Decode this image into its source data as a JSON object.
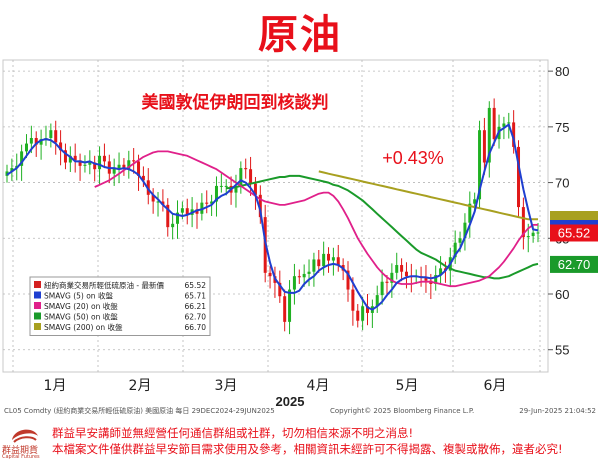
{
  "page": {
    "title": "原油",
    "disclaimer_1": "群益早安講師並無經營任何通信群組或社群，切勿相信來源不明之消息!",
    "disclaimer_2": "本檔案文件僅供群益早安節目需求使用及參考，相關資訊未經許可不得揭露、複製或散佈，違者必究!",
    "logo_text": "群益期貨",
    "logo_sub": "Capital Futures"
  },
  "chart_data": {
    "type": "line",
    "title": "原油",
    "annotations": [
      "美國敦促伊朗回到核談判",
      "+0.43%"
    ],
    "xlabel": "2025",
    "x_tick_labels": [
      "1月",
      "2月",
      "3月",
      "4月",
      "5月",
      "6月"
    ],
    "ylim": [
      53,
      81
    ],
    "y_ticks": [
      55,
      60,
      65,
      70,
      75,
      80
    ],
    "grid": true,
    "legend_position": "bottom-left",
    "legend": [
      {
        "name": "紐約商業交易所輕低硫原油 - 最新價",
        "value": "65.52",
        "color": "#d42020"
      },
      {
        "name": "SMAVG (5)  on 收盤",
        "value": "65.71",
        "color": "#1f3fd0"
      },
      {
        "name": "SMAVG (20)  on 收盤",
        "value": "66.21",
        "color": "#e0208a"
      },
      {
        "name": "SMAVG (50)  on 收盤",
        "value": "62.70",
        "color": "#1a9a2a"
      },
      {
        "name": "SMAVG (200)  on 收盤",
        "value": "66.70",
        "color": "#a8a020"
      }
    ],
    "price_labels": [
      {
        "value": 65.52,
        "text": "65.52",
        "color": "#e8101a"
      },
      {
        "value": 62.7,
        "text": "62.70",
        "color": "#1a9a2a"
      }
    ],
    "footer_left": "CL05 Comdty (紐約商業交易所輕低硫原油) 美國原油  每日 29DEC2024-29JUN2025",
    "footer_center": "Copyright© 2025 Bloomberg Finance L.P.",
    "footer_right": "29-Jun-2025 21:04:52",
    "close": [
      71.0,
      71.3,
      71.5,
      72.8,
      73.5,
      74.0,
      73.4,
      73.9,
      74.0,
      74.7,
      73.6,
      72.9,
      71.8,
      72.4,
      72.0,
      71.5,
      71.6,
      71.8,
      71.2,
      72.4,
      71.9,
      70.8,
      71.3,
      71.6,
      71.2,
      72.0,
      71.9,
      70.6,
      70.2,
      68.9,
      68.3,
      68.3,
      68.0,
      66.0,
      66.3,
      67.3,
      67.7,
      67.1,
      67.6,
      67.2,
      68.2,
      68.1,
      68.3,
      69.7,
      69.7,
      69.7,
      69.1,
      69.6,
      71.3,
      71.2,
      69.9,
      68.9,
      66.9,
      61.9,
      61.6,
      61.0,
      59.8,
      57.5,
      60.4,
      61.6,
      61.5,
      61.8,
      62.0,
      63.1,
      62.5,
      63.6,
      63.0,
      63.3,
      62.6,
      62.1,
      60.4,
      58.5,
      57.6,
      58.9,
      58.3,
      58.9,
      59.9,
      61.1,
      61.0,
      61.9,
      62.6,
      62.0,
      61.6,
      61.5,
      61.6,
      61.5,
      61.2,
      60.9,
      61.7,
      62.3,
      62.1,
      63.3,
      64.6,
      65.0,
      66.4,
      68.1,
      68.5,
      74.7,
      71.8,
      76.7,
      73.9,
      75.0,
      75.3,
      75.4,
      73.2,
      67.8,
      65.1,
      65.2,
      65.5,
      65.52
    ],
    "smavg5": [
      70.7,
      71.0,
      71.3,
      71.8,
      72.4,
      73.0,
      73.5,
      73.8,
      73.9,
      73.8,
      73.5,
      73.0,
      72.6,
      72.3,
      71.9,
      71.9,
      71.8,
      71.9,
      71.7,
      71.6,
      71.4,
      71.3,
      71.3,
      71.2,
      71.3,
      71.2,
      71.0,
      70.7,
      70.1,
      69.4,
      68.9,
      68.5,
      68.0,
      67.6,
      67.2,
      67.1,
      67.0,
      67.1,
      67.3,
      67.5,
      67.6,
      67.8,
      68.0,
      68.5,
      68.8,
      69.0,
      69.4,
      69.8,
      70.2,
      70.0,
      69.5,
      68.9,
      67.5,
      64.7,
      62.8,
      61.4,
      60.8,
      60.2,
      60.1,
      60.1,
      60.3,
      60.9,
      61.3,
      61.6,
      62.1,
      62.4,
      62.6,
      62.7,
      62.6,
      62.3,
      61.8,
      61.0,
      60.2,
      59.5,
      58.8,
      58.6,
      58.9,
      59.3,
      59.9,
      60.4,
      61.0,
      61.3,
      61.5,
      61.6,
      61.6,
      61.5,
      61.5,
      61.4,
      61.5,
      61.7,
      62.1,
      62.7,
      63.5,
      64.1,
      65.1,
      66.2,
      67.4,
      69.3,
      71.0,
      72.6,
      73.6,
      74.6,
      74.9,
      75.2,
      73.9,
      71.6,
      69.4,
      67.5,
      65.8,
      65.71
    ],
    "smavg20": [
      69.6,
      69.8,
      70.0,
      70.2,
      70.5,
      70.8,
      71.1,
      71.4,
      71.7,
      72.0,
      72.3,
      72.5,
      72.7,
      72.8,
      72.8,
      72.8,
      72.7,
      72.6,
      72.5,
      72.4,
      72.2,
      72.0,
      71.8,
      71.6,
      71.4,
      71.2,
      70.9,
      70.6,
      70.3,
      70.0,
      69.7,
      69.4,
      69.1,
      68.8,
      68.5,
      68.3,
      68.2,
      68.1,
      68.0,
      68.0,
      68.1,
      68.2,
      68.3,
      68.4,
      68.6,
      68.8,
      69.0,
      69.1,
      69.1,
      68.8,
      68.3,
      67.6,
      66.8,
      65.9,
      65.0,
      64.3,
      63.6,
      63.0,
      62.4,
      61.9,
      61.5,
      61.2,
      61.0,
      60.9,
      60.9,
      60.9,
      61.0,
      61.1,
      61.1,
      61.1,
      61.0,
      60.9,
      60.8,
      60.7,
      60.7,
      60.8,
      60.9,
      61.0,
      61.1,
      61.2,
      61.4,
      61.6,
      62.0,
      62.4,
      62.9,
      63.5,
      64.1,
      64.8,
      65.4,
      65.9,
      66.2,
      66.21
    ],
    "smavg50": [
      69.5,
      69.5,
      69.6,
      69.7,
      69.8,
      69.9,
      70.0,
      70.1,
      70.2,
      70.3,
      70.4,
      70.5,
      70.5,
      70.6,
      70.6,
      70.6,
      70.5,
      70.4,
      70.3,
      70.2,
      70.1,
      70.0,
      69.8,
      69.7,
      69.5,
      69.3,
      69.0,
      68.7,
      68.4,
      68.0,
      67.6,
      67.2,
      66.8,
      66.4,
      66.0,
      65.6,
      65.2,
      64.8,
      64.4,
      64.0,
      63.7,
      63.5,
      63.3,
      63.1,
      62.8,
      62.5,
      62.3,
      62.1,
      62.0,
      61.9,
      61.8,
      61.7,
      61.6,
      61.5,
      61.5,
      61.4,
      61.4,
      61.5,
      61.6,
      61.8,
      62.0,
      62.2,
      62.4,
      62.6,
      62.7
    ],
    "smavg200": [
      71.0,
      70.9,
      70.8,
      70.7,
      70.6,
      70.5,
      70.4,
      70.3,
      70.2,
      70.1,
      70.0,
      69.9,
      69.8,
      69.7,
      69.6,
      69.5,
      69.4,
      69.3,
      69.2,
      69.1,
      69.0,
      68.9,
      68.8,
      68.7,
      68.6,
      68.5,
      68.4,
      68.3,
      68.2,
      68.1,
      68.0,
      67.9,
      67.8,
      67.7,
      67.6,
      67.5,
      67.4,
      67.3,
      67.2,
      67.1,
      67.0,
      66.9,
      66.8,
      66.7,
      66.7,
      66.7
    ]
  }
}
